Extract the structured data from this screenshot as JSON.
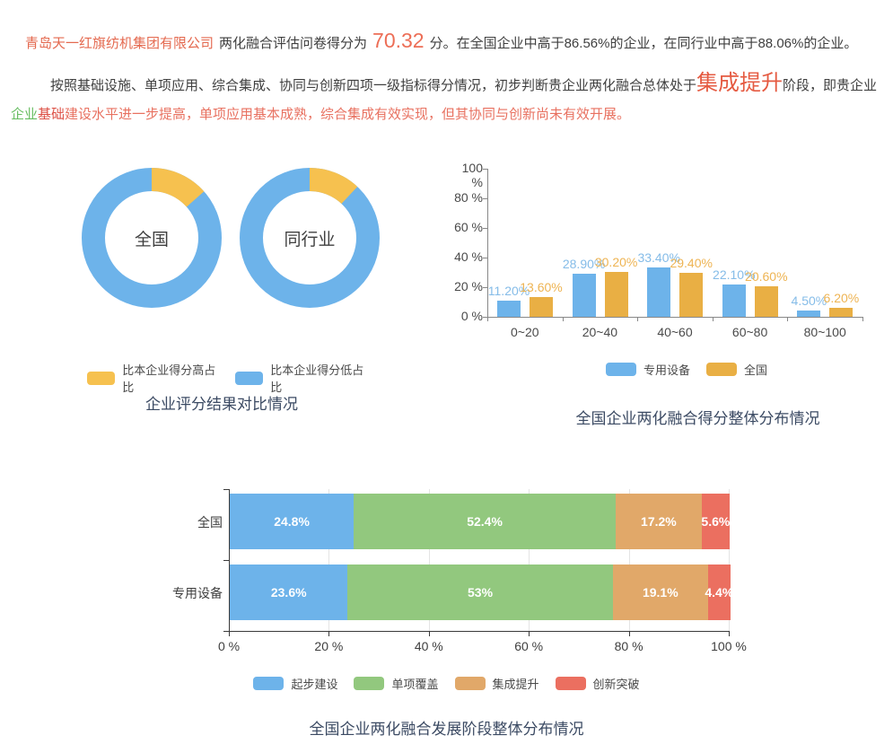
{
  "report": {
    "p1_company": "青岛天一红旗纺机集团有限公司",
    "p1_mid": "两化融合评估问卷得分为",
    "p1_score": "70.32",
    "p1_tail": "分。在全国企业中高于86.56%的企业，在同行业中高于88.06%的企业。",
    "p2_lead": "按照基础设施、单项应用、综合集成、协同与创新四项一级指标得分情况，初步判断贵企业两化融合总体处于",
    "p2_stage": "集成提升",
    "p2_mid": "阶段，即贵企业",
    "p2_kw_green": "企业",
    "p2_kw_red": "基础",
    "p2_tail": "建设水平进一步提高，单项应用基本成熟，综合集成有效实现，但其协同与创新尚未有效开展。"
  },
  "colors": {
    "blue": "#6db3ea",
    "donut_yellow": "#f6c14f",
    "bar_orange": "#e9af44",
    "green": "#92c87e",
    "stack_orange": "#e1a869",
    "red": "#eb6f60",
    "blue_label": "#85bce8",
    "orange_label": "#eeb453",
    "title": "#3b4a63"
  },
  "chart_data": [
    {
      "type": "pie",
      "variant": "donut-pair",
      "title": "企业评分结果对比情况",
      "donuts": [
        {
          "label": "全国",
          "slices": [
            {
              "name": "比本企业得分高占比",
              "value": 13.44,
              "color": "#f6c14f"
            },
            {
              "name": "比本企业得分低占比",
              "value": 86.56,
              "color": "#6db3ea"
            }
          ]
        },
        {
          "label": "同行业",
          "slices": [
            {
              "name": "比本企业得分高占比",
              "value": 11.94,
              "color": "#f6c14f"
            },
            {
              "name": "比本企业得分低占比",
              "value": 88.06,
              "color": "#6db3ea"
            }
          ]
        }
      ],
      "legend": [
        {
          "label": "比本企业得分高占比",
          "color": "#f6c14f"
        },
        {
          "label": "比本企业得分低占比",
          "color": "#6db3ea"
        }
      ]
    },
    {
      "type": "bar",
      "title": "全国企业两化融合得分整体分布情况",
      "categories": [
        "0~20",
        "20~40",
        "40~60",
        "60~80",
        "80~100"
      ],
      "series": [
        {
          "name": "专用设备",
          "color": "#6db3ea",
          "label_color": "#85bce8",
          "values": [
            11.2,
            28.9,
            33.4,
            22.1,
            4.5
          ],
          "labels": [
            "11.20%",
            "28.90%",
            "33.40%",
            "22.10%",
            "4.50%"
          ]
        },
        {
          "name": "全国",
          "color": "#e9af44",
          "label_color": "#eeb453",
          "values": [
            13.6,
            30.2,
            29.4,
            20.6,
            6.2
          ],
          "labels": [
            "13.60%",
            "30.20%",
            "29.40%",
            "20.60%",
            "6.20%"
          ]
        }
      ],
      "ylim": [
        0,
        100
      ],
      "yticks": [
        "0 %",
        "20 %",
        "40 %",
        "60 %",
        "80 %",
        "100 %"
      ],
      "legend": [
        {
          "label": "专用设备",
          "color": "#6db3ea"
        },
        {
          "label": "全国",
          "color": "#e9af44"
        }
      ]
    },
    {
      "type": "bar",
      "variant": "stacked-horizontal",
      "title": "全国企业两化融合发展阶段整体分布情况",
      "segments": [
        "起步建设",
        "单项覆盖",
        "集成提升",
        "创新突破"
      ],
      "segment_colors": [
        "#6db3ea",
        "#92c87e",
        "#e1a869",
        "#eb6f60"
      ],
      "rows": [
        {
          "label": "全国",
          "values": [
            24.8,
            52.4,
            17.2,
            5.6
          ],
          "labels": [
            "24.8%",
            "52.4%",
            "17.2%",
            "5.6%"
          ]
        },
        {
          "label": "专用设备",
          "values": [
            23.6,
            53,
            19.1,
            4.4
          ],
          "labels": [
            "23.6%",
            "53%",
            "19.1%",
            "4.4%"
          ]
        }
      ],
      "xlim": [
        0,
        100
      ],
      "xticks": [
        "0 %",
        "20 %",
        "40 %",
        "60 %",
        "80 %",
        "100 %"
      ],
      "legend": [
        {
          "label": "起步建设",
          "color": "#6db3ea"
        },
        {
          "label": "单项覆盖",
          "color": "#92c87e"
        },
        {
          "label": "集成提升",
          "color": "#e1a869"
        },
        {
          "label": "创新突破",
          "color": "#eb6f60"
        }
      ]
    }
  ]
}
